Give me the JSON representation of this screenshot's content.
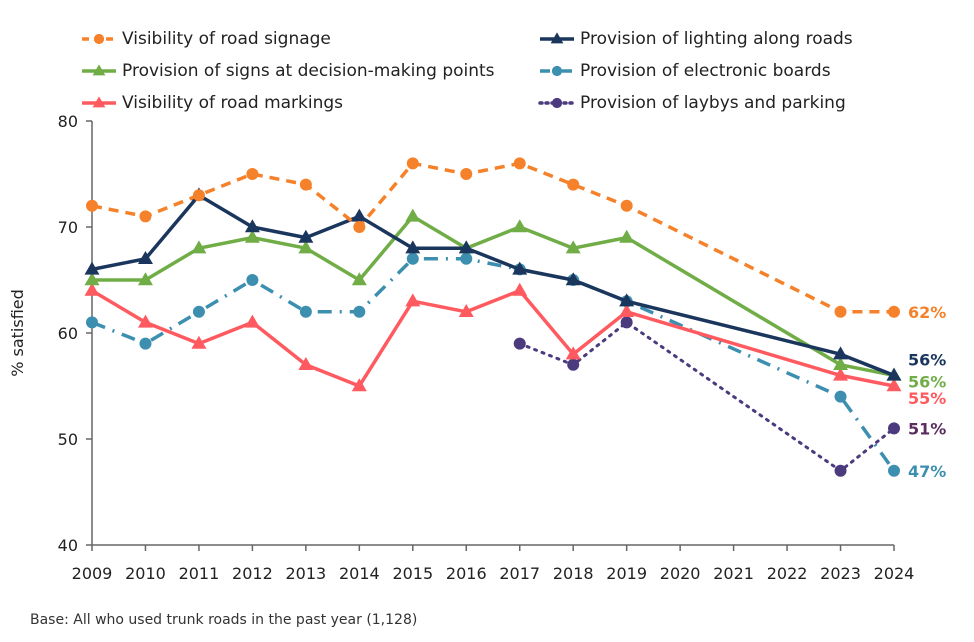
{
  "chart_data": {
    "type": "line",
    "title": "",
    "xlabel": "",
    "ylabel": "% satisfied",
    "ylim": [
      40,
      80
    ],
    "yticks": [
      40,
      50,
      60,
      70,
      80
    ],
    "x": [
      2009,
      2010,
      2011,
      2012,
      2013,
      2014,
      2015,
      2016,
      2017,
      2018,
      2019,
      2020,
      2021,
      2022,
      2023,
      2024
    ],
    "xtick_labels": [
      "2009",
      "2010",
      "2011",
      "2012",
      "2013",
      "2014",
      "2015",
      "2016",
      "2017",
      "2018",
      "2019",
      "2020",
      "2021",
      "2022",
      "2023",
      "2024"
    ],
    "grid": false,
    "legend_position": "top",
    "series": [
      {
        "name": "Visibility of road signage",
        "color": "#F5822A",
        "style": "dashed",
        "marker": "circle",
        "points": [
          [
            2009,
            72
          ],
          [
            2010,
            71
          ],
          [
            2011,
            73
          ],
          [
            2012,
            75
          ],
          [
            2013,
            74
          ],
          [
            2014,
            70
          ],
          [
            2015,
            76
          ],
          [
            2016,
            75
          ],
          [
            2017,
            76
          ],
          [
            2018,
            74
          ],
          [
            2019,
            72
          ],
          [
            2023,
            62
          ],
          [
            2024,
            62
          ]
        ],
        "end_label": "62%"
      },
      {
        "name": "Provision of lighting along roads",
        "color": "#1B365D",
        "style": "solid",
        "marker": "triangle",
        "points": [
          [
            2009,
            66
          ],
          [
            2010,
            67
          ],
          [
            2011,
            73
          ],
          [
            2012,
            70
          ],
          [
            2013,
            69
          ],
          [
            2014,
            71
          ],
          [
            2015,
            68
          ],
          [
            2016,
            68
          ],
          [
            2017,
            66
          ],
          [
            2018,
            65
          ],
          [
            2019,
            63
          ],
          [
            2023,
            58
          ],
          [
            2024,
            56
          ]
        ],
        "end_label": "56%"
      },
      {
        "name": "Provision of signs at decision-making points",
        "color": "#70AD47",
        "style": "solid",
        "marker": "triangle",
        "points": [
          [
            2009,
            65
          ],
          [
            2010,
            65
          ],
          [
            2011,
            68
          ],
          [
            2012,
            69
          ],
          [
            2013,
            68
          ],
          [
            2014,
            65
          ],
          [
            2015,
            71
          ],
          [
            2016,
            68
          ],
          [
            2017,
            70
          ],
          [
            2018,
            68
          ],
          [
            2019,
            69
          ],
          [
            2023,
            57
          ],
          [
            2024,
            56
          ]
        ],
        "end_label": "56%"
      },
      {
        "name": "Provision of electronic boards",
        "color": "#3D8FB0",
        "style": "dashdot",
        "marker": "circle",
        "points": [
          [
            2009,
            61
          ],
          [
            2010,
            59
          ],
          [
            2011,
            62
          ],
          [
            2012,
            65
          ],
          [
            2013,
            62
          ],
          [
            2014,
            62
          ],
          [
            2015,
            67
          ],
          [
            2016,
            67
          ],
          [
            2017,
            66
          ],
          [
            2018,
            65
          ],
          [
            2019,
            63
          ],
          [
            2023,
            54
          ],
          [
            2024,
            47
          ]
        ],
        "end_label": "47%"
      },
      {
        "name": "Visibility of road markings",
        "color": "#FF5A5F",
        "style": "solid",
        "marker": "triangle",
        "points": [
          [
            2009,
            64
          ],
          [
            2010,
            61
          ],
          [
            2011,
            59
          ],
          [
            2012,
            61
          ],
          [
            2013,
            57
          ],
          [
            2014,
            55
          ],
          [
            2015,
            63
          ],
          [
            2016,
            62
          ],
          [
            2017,
            64
          ],
          [
            2018,
            58
          ],
          [
            2019,
            62
          ],
          [
            2023,
            56
          ],
          [
            2024,
            55
          ]
        ],
        "end_label": "55%"
      },
      {
        "name": "Provision of laybys and parking",
        "color": "#4B3A7D",
        "label_color": "#5B2D5E",
        "style": "dotted",
        "marker": "circle",
        "points": [
          [
            2017,
            59
          ],
          [
            2018,
            57
          ],
          [
            2019,
            61
          ],
          [
            2023,
            47
          ],
          [
            2024,
            51
          ]
        ],
        "end_label": "51%"
      }
    ],
    "legend_order": [
      0,
      1,
      2,
      3,
      4,
      5
    ],
    "footnote": "Base: All who used trunk roads in the past year (1,128)"
  }
}
